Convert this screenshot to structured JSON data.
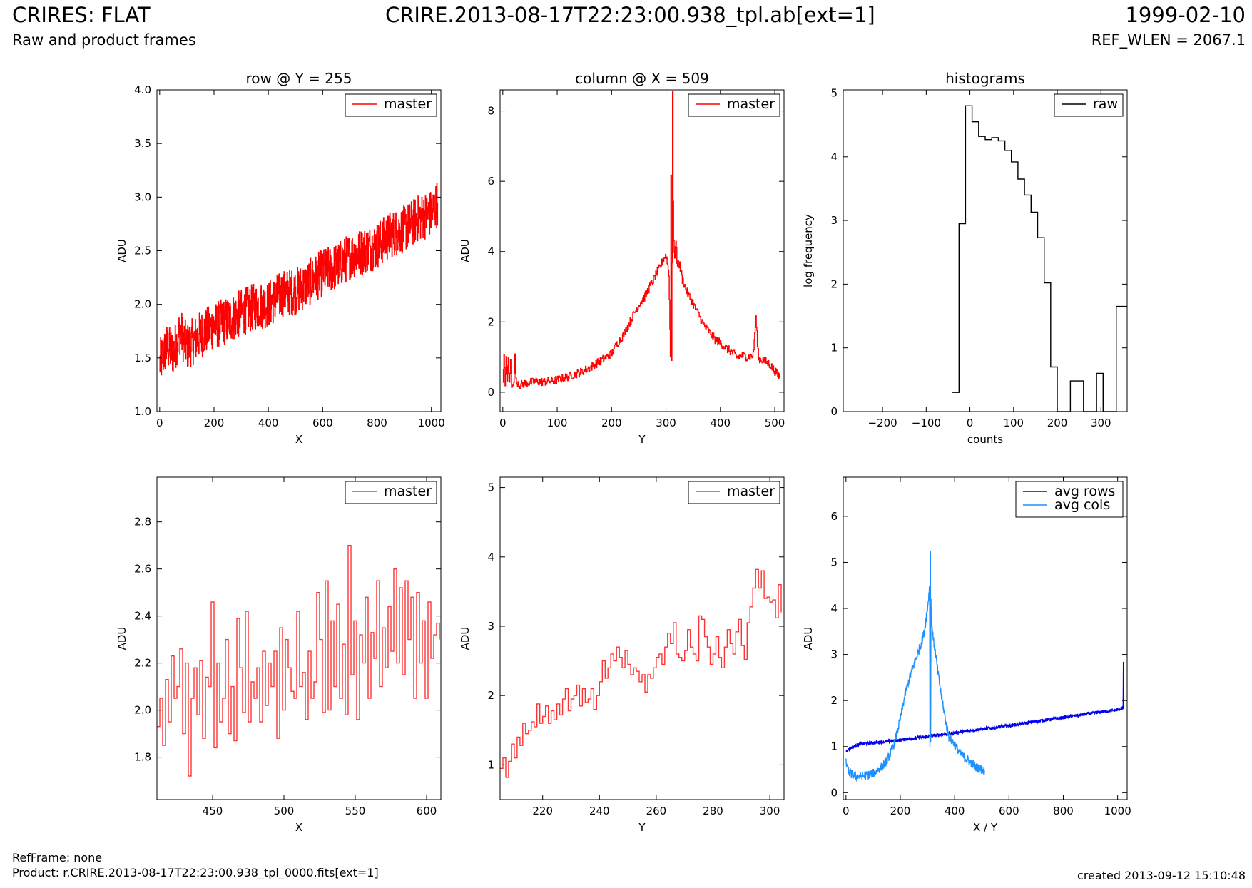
{
  "header": {
    "title": "CRIRES: FLAT",
    "subtitle": "Raw and product frames",
    "filename": "CRIRE.2013-08-17T22:23:00.938_tpl.ab[ext=1]",
    "date": "1999-02-10",
    "ref_wlen": "REF_WLEN = 2067.1"
  },
  "footer": {
    "ref_frame": "RefFrame: none",
    "product": "Product: r.CRIRE.2013-08-17T22:23:00.938_tpl_0000.fits[ext=1]",
    "created": "created 2013-09-12 15:10:48"
  },
  "chart_data": [
    {
      "id": "row",
      "type": "line",
      "title": "row @ Y = 255",
      "xlabel": "X",
      "ylabel": "ADU",
      "xlim": [
        -10,
        1035
      ],
      "ylim": [
        1.0,
        4.0
      ],
      "xticks": [
        0,
        200,
        400,
        600,
        800,
        1000
      ],
      "yticks": [
        1.0,
        1.5,
        2.0,
        2.5,
        3.0,
        3.5,
        4.0
      ],
      "ytick_labels": [
        "1.0",
        "1.5",
        "2.0",
        "2.5",
        "3.0",
        "3.5",
        "4.0"
      ],
      "legend_position": "top-right",
      "series": [
        {
          "name": "master",
          "color": "#ff0000",
          "step": true,
          "x": [
            0,
            25,
            50,
            75,
            100,
            150,
            200,
            250,
            300,
            350,
            400,
            450,
            500,
            550,
            600,
            650,
            700,
            750,
            800,
            850,
            900,
            950,
            1000,
            1023
          ],
          "y": [
            1.45,
            1.6,
            1.55,
            1.75,
            1.6,
            1.72,
            1.8,
            1.85,
            1.92,
            1.98,
            2.0,
            2.1,
            2.12,
            2.2,
            2.3,
            2.35,
            2.45,
            2.5,
            2.55,
            2.65,
            2.7,
            2.8,
            2.85,
            2.95
          ],
          "noise": 0.22
        }
      ]
    },
    {
      "id": "column",
      "type": "line",
      "title": "column @ X = 509",
      "xlabel": "Y",
      "ylabel": "ADU",
      "xlim": [
        -5,
        517
      ],
      "ylim": [
        -0.55,
        8.6
      ],
      "xticks": [
        0,
        100,
        200,
        300,
        400,
        500
      ],
      "yticks": [
        0,
        2,
        4,
        6,
        8
      ],
      "legend_position": "top-right",
      "series": [
        {
          "name": "master",
          "color": "#ff0000",
          "step": true,
          "x": [
            0,
            2,
            4,
            6,
            8,
            10,
            12,
            14,
            16,
            18,
            20,
            22,
            24,
            26,
            28,
            30,
            40,
            60,
            80,
            100,
            120,
            140,
            160,
            180,
            200,
            210,
            220,
            230,
            240,
            250,
            260,
            270,
            280,
            290,
            295,
            300,
            305,
            308,
            309,
            310,
            311,
            312,
            313,
            314,
            316,
            318,
            320,
            325,
            330,
            340,
            350,
            360,
            370,
            380,
            390,
            400,
            410,
            420,
            430,
            440,
            450,
            460,
            465,
            470,
            480,
            490,
            500,
            505,
            510
          ],
          "y": [
            0.2,
            1.0,
            0.2,
            1.0,
            0.3,
            1.0,
            0.2,
            0.9,
            0.2,
            0.3,
            0.2,
            1.0,
            0.3,
            0.25,
            0.3,
            0.2,
            0.25,
            0.3,
            0.3,
            0.35,
            0.45,
            0.55,
            0.7,
            0.9,
            1.1,
            1.4,
            1.6,
            1.9,
            2.2,
            2.5,
            2.7,
            3.0,
            3.3,
            3.6,
            3.8,
            3.9,
            3.4,
            1.0,
            6.2,
            1.0,
            3.7,
            8.6,
            5.4,
            4.2,
            3.9,
            4.3,
            3.7,
            3.6,
            3.2,
            2.8,
            2.5,
            2.2,
            1.9,
            1.7,
            1.5,
            1.4,
            1.25,
            1.15,
            1.0,
            1.05,
            1.0,
            1.05,
            2.1,
            0.95,
            0.9,
            0.8,
            0.6,
            0.5,
            0.45
          ],
          "noise": 0.12
        }
      ]
    },
    {
      "id": "histograms",
      "type": "line",
      "title": "histograms",
      "xlabel": "counts",
      "ylabel": "log frequency",
      "xlim": [
        -290,
        360
      ],
      "ylim": [
        0,
        5.05
      ],
      "xticks": [
        -200,
        -100,
        0,
        100,
        200,
        300
      ],
      "xtick_labels": [
        "−200",
        "−100",
        "0",
        "100",
        "200",
        "300"
      ],
      "yticks": [
        0,
        1,
        2,
        3,
        4,
        5
      ],
      "legend_position": "top-right",
      "series": [
        {
          "name": "raw",
          "color": "#000000",
          "step": true,
          "x": [
            -40,
            -25,
            -10,
            5,
            20,
            35,
            50,
            65,
            80,
            95,
            110,
            125,
            140,
            155,
            170,
            185,
            200,
            215,
            230,
            245,
            260,
            275,
            290,
            305,
            320,
            335,
            350,
            360
          ],
          "y": [
            0.3,
            2.95,
            4.8,
            4.55,
            4.32,
            4.27,
            4.3,
            4.25,
            4.1,
            3.92,
            3.65,
            3.4,
            3.13,
            2.73,
            2.02,
            0.7,
            0,
            0,
            0.48,
            0.48,
            0,
            0,
            0.6,
            0,
            0,
            1.65,
            1.65,
            1.65
          ]
        }
      ]
    },
    {
      "id": "row-zoom",
      "type": "line",
      "title": "",
      "xlabel": "X",
      "ylabel": "ADU",
      "xlim": [
        411,
        610
      ],
      "ylim": [
        1.62,
        2.99
      ],
      "xticks": [
        450,
        500,
        550,
        600
      ],
      "yticks": [
        1.8,
        2.0,
        2.2,
        2.4,
        2.6,
        2.8
      ],
      "ytick_labels": [
        "1.8",
        "2.0",
        "2.2",
        "2.4",
        "2.6",
        "2.8"
      ],
      "legend_position": "top-right",
      "series": [
        {
          "name": "master",
          "color": "#ff3333",
          "step": true,
          "x": [
            411,
            413,
            415,
            417,
            419,
            421,
            423,
            425,
            427,
            429,
            431,
            433,
            435,
            437,
            439,
            441,
            443,
            445,
            447,
            449,
            451,
            453,
            455,
            457,
            459,
            461,
            463,
            465,
            467,
            469,
            471,
            473,
            475,
            477,
            479,
            481,
            483,
            485,
            487,
            489,
            491,
            493,
            495,
            497,
            499,
            501,
            503,
            505,
            507,
            509,
            511,
            513,
            515,
            517,
            519,
            521,
            523,
            525,
            527,
            529,
            531,
            533,
            535,
            537,
            539,
            541,
            543,
            545,
            547,
            549,
            551,
            553,
            555,
            557,
            559,
            561,
            563,
            565,
            567,
            569,
            571,
            573,
            575,
            577,
            579,
            581,
            583,
            585,
            587,
            589,
            591,
            593,
            595,
            597,
            599,
            601,
            603,
            605,
            607,
            609
          ],
          "y": [
            1.93,
            2.05,
            1.85,
            2.13,
            1.95,
            2.23,
            2.05,
            2.1,
            2.26,
            1.9,
            2.2,
            1.72,
            2.05,
            2.18,
            1.98,
            2.21,
            1.88,
            2.14,
            2.1,
            2.46,
            1.84,
            2.2,
            1.95,
            2.05,
            2.3,
            1.9,
            2.1,
            1.87,
            2.39,
            2.18,
            1.99,
            2.42,
            1.95,
            2.12,
            2.05,
            2.18,
            1.95,
            2.25,
            2.02,
            2.2,
            2.1,
            2.25,
            1.88,
            2.35,
            2.0,
            2.3,
            2.18,
            2.08,
            2.05,
            2.42,
            2.1,
            2.16,
            1.96,
            2.25,
            2.05,
            2.12,
            2.5,
            2.3,
            1.99,
            2.55,
            2.0,
            2.38,
            2.1,
            2.45,
            2.05,
            2.28,
            1.98,
            2.7,
            2.15,
            2.38,
            1.96,
            2.32,
            2.2,
            2.48,
            2.05,
            2.33,
            2.22,
            2.55,
            2.1,
            2.35,
            2.18,
            2.44,
            2.25,
            2.6,
            2.2,
            2.52,
            2.15,
            2.55,
            2.3,
            2.48,
            2.05,
            2.5,
            2.2,
            2.38,
            2.05,
            2.46,
            2.22,
            2.32,
            2.37,
            2.3
          ]
        }
      ]
    },
    {
      "id": "column-zoom",
      "type": "line",
      "title": "",
      "xlabel": "Y",
      "ylabel": "ADU",
      "xlim": [
        205,
        305
      ],
      "ylim": [
        0.5,
        5.15
      ],
      "xticks": [
        220,
        240,
        260,
        280,
        300
      ],
      "yticks": [
        1,
        2,
        3,
        4,
        5
      ],
      "legend_position": "top-right",
      "series": [
        {
          "name": "master",
          "color": "#ff3333",
          "step": true,
          "x": [
            205,
            206,
            207,
            208,
            209,
            210,
            211,
            212,
            213,
            214,
            215,
            216,
            217,
            218,
            219,
            220,
            221,
            222,
            223,
            224,
            225,
            226,
            227,
            228,
            229,
            230,
            231,
            232,
            233,
            234,
            235,
            236,
            237,
            238,
            239,
            240,
            241,
            242,
            243,
            244,
            245,
            246,
            247,
            248,
            249,
            250,
            251,
            252,
            253,
            254,
            255,
            256,
            257,
            258,
            259,
            260,
            261,
            262,
            263,
            264,
            265,
            266,
            267,
            268,
            269,
            270,
            271,
            272,
            273,
            274,
            275,
            276,
            277,
            278,
            279,
            280,
            281,
            282,
            283,
            284,
            285,
            286,
            287,
            288,
            289,
            290,
            291,
            292,
            293,
            294,
            295,
            296,
            297,
            298,
            299,
            300,
            301,
            302,
            303,
            304
          ],
          "y": [
            0.95,
            1.1,
            0.82,
            1.05,
            1.3,
            1.1,
            1.4,
            1.28,
            1.6,
            1.45,
            1.5,
            1.62,
            1.55,
            1.88,
            1.6,
            1.7,
            1.85,
            1.6,
            1.78,
            1.65,
            1.88,
            1.72,
            1.95,
            2.1,
            1.78,
            1.95,
            2.0,
            2.15,
            1.85,
            2.1,
            1.9,
            1.95,
            2.1,
            1.8,
            2.0,
            2.2,
            2.5,
            2.25,
            2.4,
            2.6,
            2.5,
            2.7,
            2.55,
            2.4,
            2.65,
            2.45,
            2.3,
            2.4,
            2.35,
            2.2,
            2.3,
            2.05,
            2.3,
            2.25,
            2.4,
            2.55,
            2.6,
            2.45,
            2.7,
            2.9,
            2.75,
            3.05,
            2.6,
            2.55,
            2.5,
            2.65,
            2.95,
            2.7,
            2.6,
            2.5,
            3.15,
            3.1,
            2.85,
            2.7,
            2.45,
            2.6,
            2.85,
            2.55,
            2.4,
            2.7,
            2.95,
            2.75,
            2.6,
            2.92,
            3.1,
            2.72,
            2.52,
            3.05,
            3.28,
            3.55,
            3.82,
            3.55,
            3.8,
            3.4,
            3.42,
            3.35,
            3.38,
            3.12,
            3.6,
            3.2
          ]
        }
      ]
    },
    {
      "id": "averages",
      "type": "line",
      "title": "",
      "xlabel": "X / Y",
      "ylabel": "ADU",
      "xlim": [
        -10,
        1035
      ],
      "ylim": [
        -0.15,
        6.85
      ],
      "xticks": [
        0,
        200,
        400,
        600,
        800,
        1000
      ],
      "yticks": [
        0,
        1,
        2,
        3,
        4,
        5,
        6
      ],
      "legend_position": "top-right",
      "series": [
        {
          "name": "avg rows",
          "color": "#0000ee",
          "step": false,
          "x": [
            0,
            20,
            50,
            100,
            200,
            300,
            400,
            500,
            600,
            700,
            800,
            900,
            1000,
            1020,
            1021,
            1022,
            1023
          ],
          "y": [
            0.9,
            0.98,
            1.05,
            1.08,
            1.14,
            1.22,
            1.3,
            1.38,
            1.45,
            1.55,
            1.63,
            1.72,
            1.8,
            1.83,
            2.85,
            1.85,
            1.88
          ],
          "noise": 0.035
        },
        {
          "name": "avg cols",
          "color": "#1e90ff",
          "step": false,
          "x": [
            0,
            10,
            20,
            40,
            60,
            80,
            100,
            120,
            140,
            160,
            180,
            200,
            220,
            240,
            260,
            280,
            290,
            295,
            300,
            305,
            308,
            309,
            310,
            311,
            312,
            313,
            314,
            316,
            320,
            330,
            340,
            350,
            360,
            370,
            380,
            400,
            420,
            440,
            460,
            480,
            500,
            510
          ],
          "y": [
            0.65,
            0.45,
            0.4,
            0.35,
            0.36,
            0.38,
            0.42,
            0.5,
            0.6,
            0.8,
            1.1,
            1.6,
            2.2,
            2.6,
            2.95,
            3.3,
            3.55,
            3.8,
            4.0,
            4.3,
            4.5,
            1.0,
            4.1,
            5.35,
            1.1,
            4.2,
            3.85,
            3.7,
            3.4,
            3.0,
            2.55,
            2.15,
            1.8,
            1.45,
            1.2,
            1.05,
            0.85,
            0.75,
            0.65,
            0.55,
            0.5,
            0.48
          ],
          "noise": 0.1
        }
      ]
    }
  ]
}
